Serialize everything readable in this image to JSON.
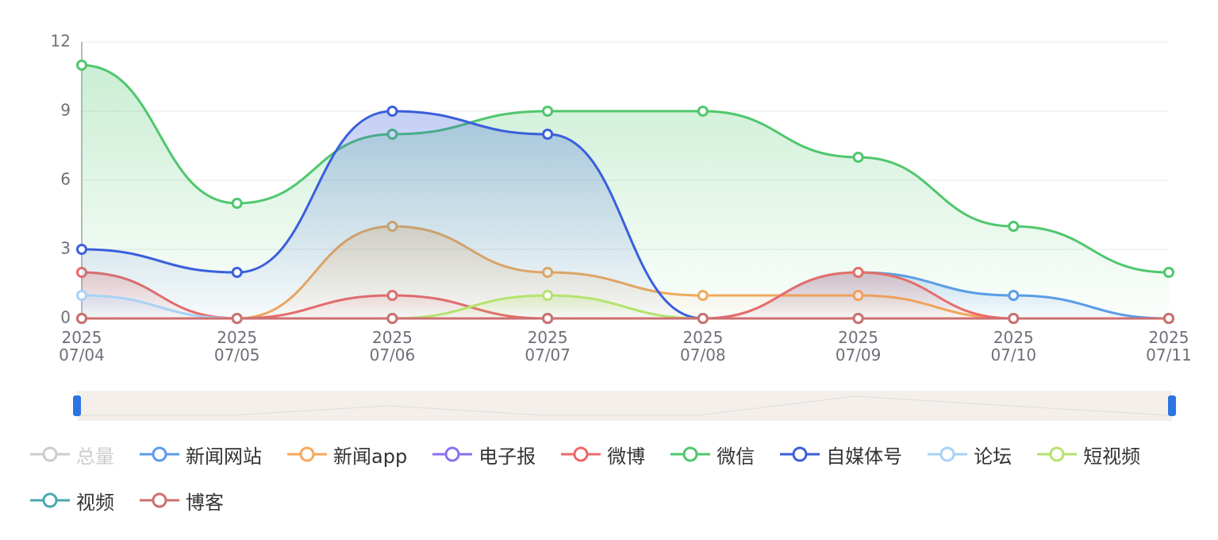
{
  "chart_data": {
    "type": "line",
    "categories": [
      "2025\n07/04",
      "2025\n07/05",
      "2025\n07/06",
      "2025\n07/07",
      "2025\n07/08",
      "2025\n07/09",
      "2025\n07/10",
      "2025\n07/11"
    ],
    "ylim": [
      0,
      12
    ],
    "yticks": [
      0,
      3,
      6,
      9,
      12
    ],
    "grid": true,
    "smooth": true,
    "area": true,
    "series": [
      {
        "name": "总量",
        "color": "#cccccc",
        "visible": false
      },
      {
        "name": "新闻网站",
        "color": "#5b9bec",
        "values": [
          0,
          0,
          0,
          0,
          0,
          2,
          1,
          0
        ]
      },
      {
        "name": "新闻app",
        "color": "#f7a85a",
        "values": [
          0,
          0,
          4,
          2,
          1,
          1,
          0,
          0
        ]
      },
      {
        "name": "电子报",
        "color": "#8a6ff0",
        "values": [
          0,
          0,
          0,
          0,
          0,
          0,
          0,
          0
        ]
      },
      {
        "name": "微博",
        "color": "#ef6868",
        "values": [
          2,
          0,
          1,
          0,
          0,
          2,
          0,
          0
        ]
      },
      {
        "name": "微信",
        "color": "#4fc76d",
        "values": [
          11,
          5,
          8,
          9,
          9,
          7,
          4,
          2
        ]
      },
      {
        "name": "自媒体号",
        "color": "#3a5fdc",
        "values": [
          3,
          2,
          9,
          8,
          0,
          0,
          0,
          0
        ]
      },
      {
        "name": "论坛",
        "color": "#a9d2f5",
        "values": [
          1,
          0,
          0,
          0,
          0,
          0,
          0,
          0
        ]
      },
      {
        "name": "短视频",
        "color": "#b5e36e",
        "values": [
          0,
          0,
          0,
          1,
          0,
          0,
          0,
          0
        ]
      },
      {
        "name": "视频",
        "color": "#4aa8b0",
        "values": [
          0,
          0,
          0,
          0,
          0,
          0,
          0,
          0
        ]
      },
      {
        "name": "博客",
        "color": "#cd7070",
        "values": [
          0,
          0,
          0,
          0,
          0,
          0,
          0,
          0
        ]
      }
    ]
  }
}
